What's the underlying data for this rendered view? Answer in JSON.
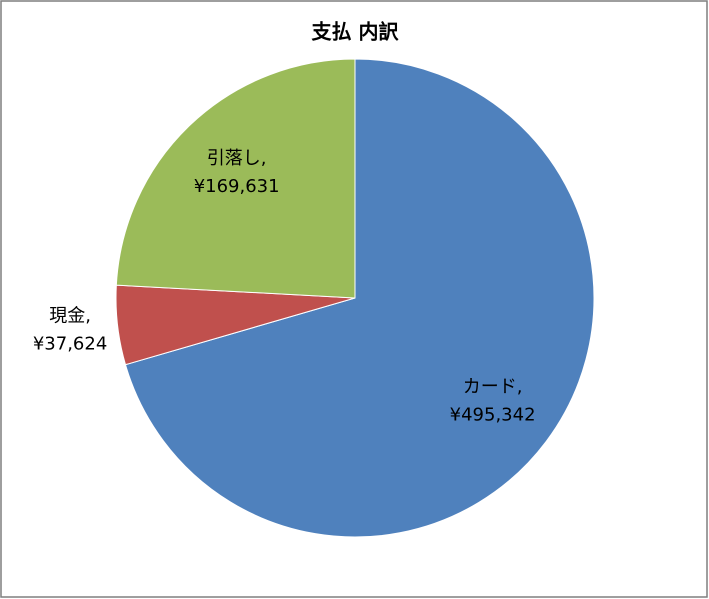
{
  "chart_data": {
    "type": "pie",
    "title": "支払 内訳",
    "categories": [
      "カード,",
      "現金,",
      "引落し,"
    ],
    "values": [
      495342,
      37624,
      169631
    ],
    "value_labels": [
      "¥495,342",
      "¥37,624",
      "¥169,631"
    ],
    "colors": [
      "#4f81bd",
      "#c0504d",
      "#9bbb59"
    ]
  }
}
